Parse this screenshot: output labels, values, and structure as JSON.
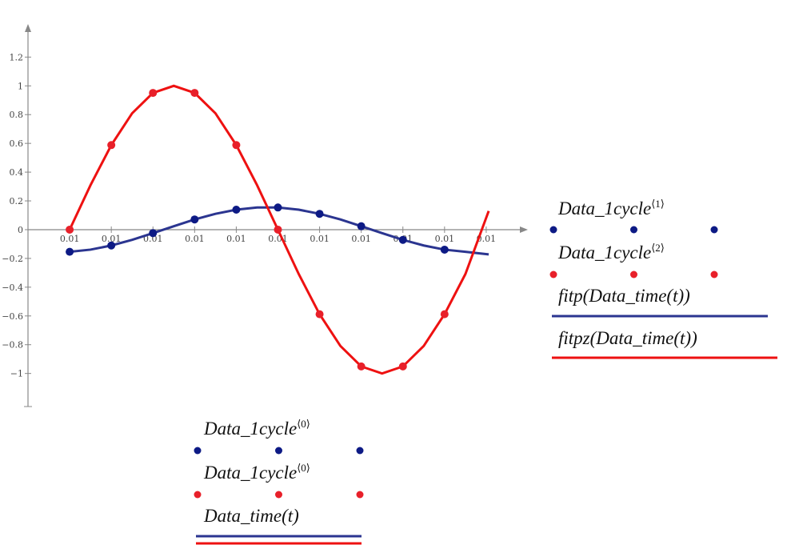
{
  "chart_data": {
    "type": "line",
    "xlim": [
      0.0099,
      0.0111
    ],
    "ylim": [
      -1.23,
      1.43
    ],
    "xticks": [
      {
        "value": 0.01,
        "label": "0.01"
      },
      {
        "value": 0.0101,
        "label": "0.01"
      },
      {
        "value": 0.0102,
        "label": "0.01"
      },
      {
        "value": 0.0103,
        "label": "0.01"
      },
      {
        "value": 0.0104,
        "label": "0.01"
      },
      {
        "value": 0.0105,
        "label": "0.01"
      },
      {
        "value": 0.0106,
        "label": "0.01"
      },
      {
        "value": 0.0107,
        "label": "0.01"
      },
      {
        "value": 0.0108,
        "label": "0.01"
      },
      {
        "value": 0.0109,
        "label": "0.01"
      },
      {
        "value": 0.011,
        "label": "0.01"
      }
    ],
    "yticks": [
      1.2,
      1,
      0.8,
      0.6,
      0.4,
      0.2,
      0,
      {
        "value": -0.2,
        "label": "−0.2"
      },
      {
        "value": -0.4,
        "label": "−0.4"
      },
      {
        "value": -0.6,
        "label": "−0.6"
      },
      {
        "value": -0.8,
        "label": "−0.8"
      },
      {
        "value": -1,
        "label": "−1"
      }
    ],
    "series": [
      {
        "name": "Data_1cycle",
        "index": "⟨1⟩",
        "style": "points",
        "color": "#0d1a85",
        "x": [
          0.01,
          0.0101,
          0.0102,
          0.0103,
          0.0104,
          0.0105,
          0.0106,
          0.0107,
          0.0108,
          0.0109
        ],
        "values": [
          -0.154,
          -0.11,
          -0.024,
          0.071,
          0.139,
          0.154,
          0.11,
          0.024,
          -0.071,
          -0.139
        ]
      },
      {
        "name": "Data_1cycle",
        "index": "⟨2⟩",
        "style": "points",
        "color": "#e8202a",
        "x": [
          0.01,
          0.0101,
          0.0102,
          0.0103,
          0.0104,
          0.0105,
          0.0106,
          0.0107,
          0.0108,
          0.0109
        ],
        "values": [
          0,
          0.588,
          0.951,
          0.951,
          0.588,
          0,
          -0.588,
          -0.951,
          -0.951,
          -0.588
        ]
      },
      {
        "name": "fitp(Data_time(t))",
        "style": "line",
        "color": "#2b3590",
        "x": [
          0.01,
          0.01005,
          0.0101,
          0.01015,
          0.0102,
          0.01025,
          0.0103,
          0.01035,
          0.0104,
          0.01045,
          0.0105,
          0.01055,
          0.0106,
          0.01065,
          0.0107,
          0.01075,
          0.0108,
          0.01085,
          0.0109,
          0.01095,
          0.011006
        ],
        "values": [
          -0.154,
          -0.139,
          -0.11,
          -0.071,
          -0.024,
          0.024,
          0.071,
          0.11,
          0.139,
          0.154,
          0.154,
          0.139,
          0.11,
          0.071,
          0.024,
          -0.024,
          -0.071,
          -0.11,
          -0.139,
          -0.154,
          -0.172
        ]
      },
      {
        "name": "fitpz(Data_time(t))",
        "style": "line",
        "color": "#ee1111",
        "x": [
          0.01,
          0.01005,
          0.0101,
          0.01015,
          0.0102,
          0.01025,
          0.0103,
          0.01035,
          0.0104,
          0.01045,
          0.0105,
          0.01055,
          0.0106,
          0.01065,
          0.0107,
          0.01075,
          0.0108,
          0.01085,
          0.0109,
          0.01095,
          0.011006
        ],
        "values": [
          0,
          0.309,
          0.588,
          0.809,
          0.951,
          1,
          0.951,
          0.809,
          0.588,
          0.309,
          0,
          -0.309,
          -0.588,
          -0.809,
          -0.951,
          -1,
          -0.951,
          -0.809,
          -0.588,
          -0.309,
          0.13
        ]
      }
    ],
    "x_legend": [
      {
        "text": "Data_1cycle",
        "index": "⟨0⟩"
      },
      {
        "text": "Data_1cycle",
        "index": "⟨0⟩"
      },
      {
        "text": "Data_time(t)"
      }
    ]
  }
}
